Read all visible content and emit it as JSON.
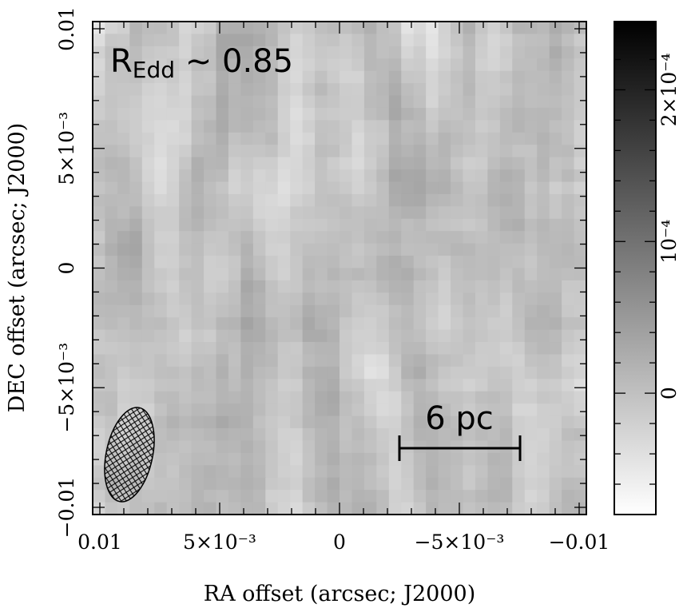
{
  "chart_data": {
    "type": "heatmap",
    "colormap": "greyscale (white = low, black = high)",
    "xlabel": "RA offset (arcsec; J2000)",
    "ylabel": "DEC offset (arcsec; J2000)",
    "xlim": [
      0.0103,
      -0.0103
    ],
    "ylim": [
      -0.0103,
      0.0103
    ],
    "x_ticks": [
      {
        "value": 0.01,
        "label": "0.01"
      },
      {
        "value": 0.005,
        "label": "5×10⁻³"
      },
      {
        "value": 0,
        "label": "0"
      },
      {
        "value": -0.005,
        "label": "−5×10⁻³"
      },
      {
        "value": -0.01,
        "label": "−0.01"
      }
    ],
    "y_ticks": [
      {
        "value": -0.01,
        "label": "−0.01"
      },
      {
        "value": -0.005,
        "label": "−5×10⁻³"
      },
      {
        "value": 0,
        "label": "0"
      },
      {
        "value": 0.005,
        "label": "5×10⁻³"
      },
      {
        "value": 0.01,
        "label": "0.01"
      }
    ],
    "colorbar": {
      "range": [
        -8e-05,
        0.000245
      ],
      "ticks": [
        {
          "value": 0,
          "label": "0"
        },
        {
          "value": 0.0001,
          "label": "10⁻⁴"
        },
        {
          "value": 0.0002,
          "label": "2×10⁻⁴"
        }
      ]
    },
    "annotations": {
      "title_main": "R",
      "title_sub": "Edd",
      "title_rest": " ~ 0.85",
      "scalebar_label": "6 pc"
    },
    "beam": {
      "hatched": true,
      "shape": "ellipse"
    },
    "grid": false
  }
}
